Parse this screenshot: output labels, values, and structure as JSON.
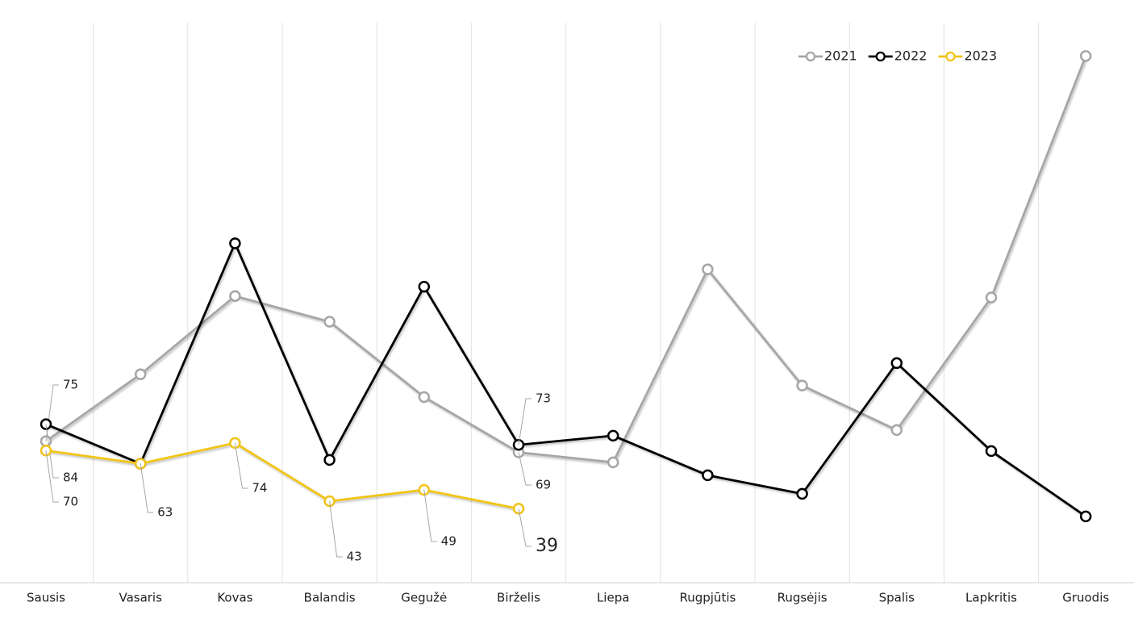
{
  "chart_data": {
    "type": "line",
    "categories": [
      "Sausis",
      "Vasaris",
      "Kovas",
      "Balandis",
      "Gegužė",
      "Birželis",
      "Liepa",
      "Rugpjūtis",
      "Rugsėjis",
      "Spalis",
      "Lapkritis",
      "Gruodis"
    ],
    "ylim": [
      0,
      298
    ],
    "grid": true,
    "legend": "top-right",
    "series": [
      {
        "name": "2021",
        "color": "#a6a6a6",
        "label_color": "#a6a6a6",
        "values": [
          75,
          110.6,
          152.3,
          138.6,
          98.5,
          69,
          63.7,
          166.5,
          104.6,
          80.9,
          151.5,
          280.2
        ],
        "value_labels": [
          "75",
          null,
          null,
          null,
          null,
          "69",
          null,
          null,
          null,
          null,
          null,
          null
        ]
      },
      {
        "name": "2022",
        "color": "#000000",
        "label_color": "#222222",
        "values": [
          84,
          63,
          180.4,
          65,
          157.3,
          73,
          77.9,
          56.8,
          46.9,
          116.6,
          69.7,
          34.9
        ],
        "value_labels": [
          "84",
          null,
          null,
          null,
          null,
          "73",
          null,
          null,
          null,
          null,
          null,
          null
        ]
      },
      {
        "name": "2023",
        "color": "#f0c419",
        "label_color": "#222222",
        "values": [
          70,
          63,
          74,
          43,
          49,
          39,
          null,
          null,
          null,
          null,
          null,
          null
        ],
        "value_labels": [
          "70",
          "63",
          "74",
          "43",
          "49",
          "39",
          null,
          null,
          null,
          null,
          null,
          null
        ]
      }
    ]
  }
}
